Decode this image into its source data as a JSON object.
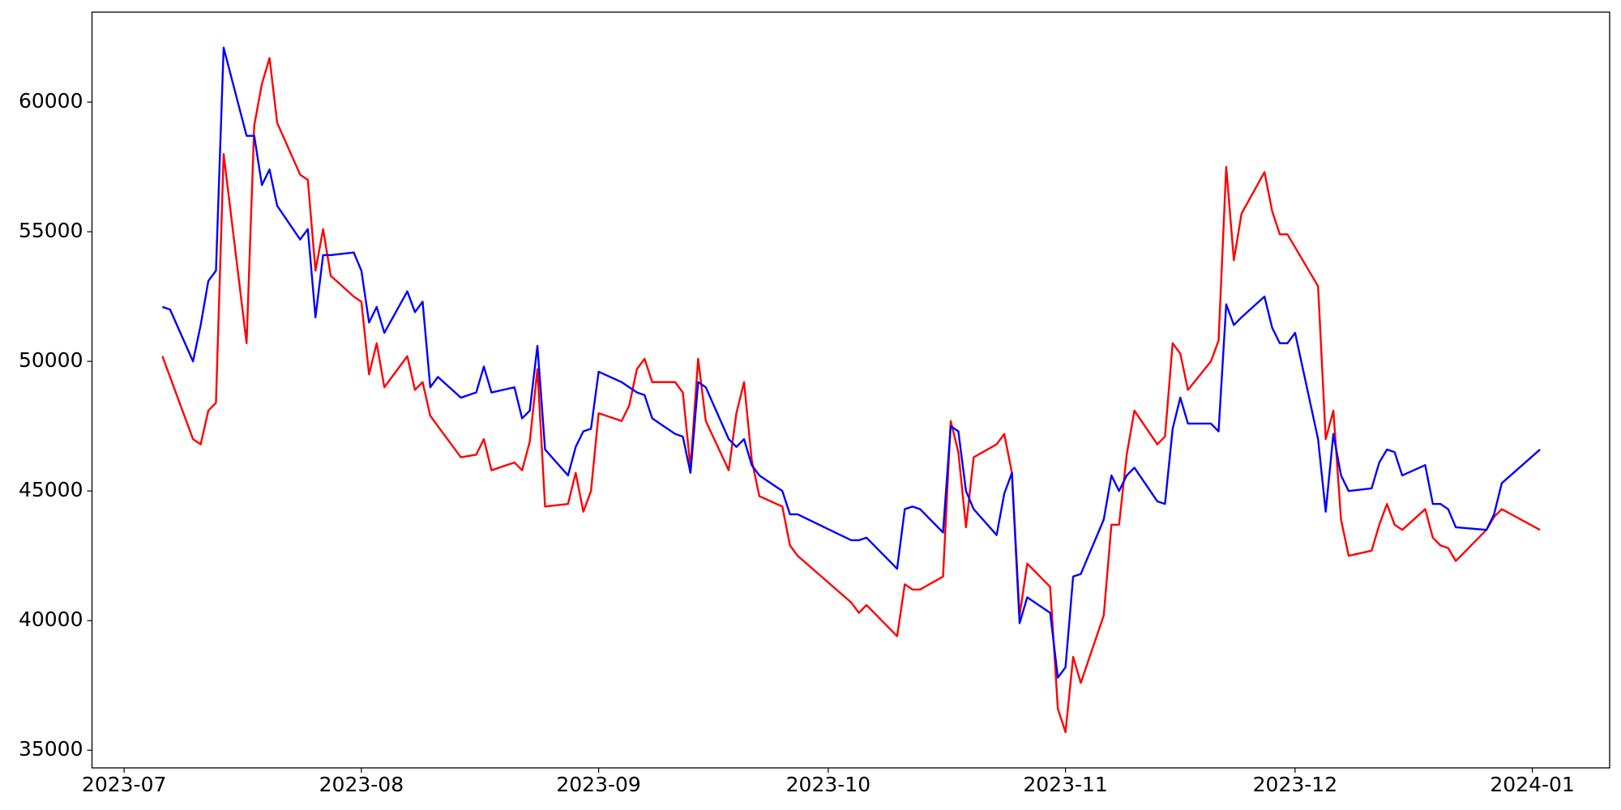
{
  "chart_data": {
    "type": "line",
    "x": [
      19544,
      19545,
      19548,
      19549,
      19550,
      19551,
      19552,
      19555,
      19556,
      19557,
      19558,
      19559,
      19562,
      19563,
      19564,
      19565,
      19566,
      19569,
      19570,
      19571,
      19572,
      19573,
      19576,
      19577,
      19578,
      19579,
      19580,
      19583,
      19585,
      19586,
      19587,
      19590,
      19591,
      19592,
      19593,
      19594,
      19597,
      19598,
      19599,
      19600,
      19601,
      19604,
      19605,
      19606,
      19607,
      19608,
      19611,
      19612,
      19613,
      19614,
      19615,
      19618,
      19619,
      19620,
      19621,
      19622,
      19625,
      19626,
      19627,
      19634,
      19635,
      19636,
      19640,
      19641,
      19642,
      19643,
      19646,
      19647,
      19648,
      19649,
      19650,
      19653,
      19654,
      19655,
      19656,
      19657,
      19660,
      19661,
      19662,
      19663,
      19664,
      19667,
      19668,
      19669,
      19670,
      19671,
      19674,
      19675,
      19676,
      19677,
      19678,
      19681,
      19682,
      19683,
      19684,
      19685,
      19688,
      19689,
      19690,
      19691,
      19692,
      19695,
      19696,
      19697,
      19698,
      19699,
      19702,
      19703,
      19704,
      19705,
      19706,
      19709,
      19710,
      19711,
      19712,
      19713,
      19717,
      19718,
      19719,
      19724
    ],
    "series": [
      {
        "color": "#ff0000",
        "values": [
          50200,
          49400,
          47000,
          46800,
          48100,
          48400,
          58000,
          50700,
          59100,
          60700,
          61700,
          59200,
          57200,
          57000,
          53500,
          55100,
          53300,
          52500,
          52300,
          49500,
          50700,
          49000,
          50200,
          48900,
          49200,
          47900,
          47500,
          46300,
          46400,
          47000,
          45800,
          46100,
          45800,
          46900,
          49700,
          44400,
          44500,
          45700,
          44200,
          45000,
          48000,
          47700,
          48300,
          49700,
          50100,
          49200,
          49200,
          48800,
          45900,
          50100,
          47700,
          45800,
          48000,
          49200,
          46200,
          44800,
          44400,
          42900,
          42500,
          40700,
          40300,
          40600,
          39400,
          41400,
          41200,
          41200,
          41700,
          47700,
          46500,
          43600,
          46300,
          46800,
          47200,
          45700,
          40200,
          42200,
          41300,
          36600,
          35700,
          38600,
          37600,
          40200,
          43700,
          43700,
          46400,
          48100,
          46800,
          47100,
          50700,
          50300,
          48900,
          50000,
          50800,
          57500,
          53900,
          55700,
          57300,
          55800,
          54900,
          54900,
          54400,
          52900,
          47000,
          48100,
          43900,
          42500,
          42700,
          43700,
          44500,
          43700,
          43500,
          44300,
          43200,
          42900,
          42800,
          42300,
          43500,
          44000,
          44300,
          43500
        ]
      },
      {
        "color": "#0000ff",
        "values": [
          52100,
          52000,
          50000,
          51400,
          53100,
          53500,
          62100,
          58700,
          58700,
          56800,
          57400,
          56000,
          54700,
          55100,
          51700,
          54100,
          54100,
          54200,
          53500,
          51500,
          52100,
          51100,
          52700,
          51900,
          52300,
          49000,
          49400,
          48600,
          48800,
          49800,
          48800,
          49000,
          47800,
          48100,
          50600,
          46600,
          45600,
          46700,
          47300,
          47400,
          49600,
          49200,
          49000,
          48800,
          48700,
          47800,
          47200,
          47100,
          45700,
          49200,
          49000,
          47000,
          46700,
          47000,
          46000,
          45600,
          45000,
          44100,
          44100,
          43100,
          43100,
          43200,
          42000,
          44300,
          44400,
          44300,
          43400,
          47500,
          47300,
          45000,
          44300,
          43300,
          44900,
          45700,
          39900,
          40900,
          40300,
          37800,
          38200,
          41700,
          41800,
          43900,
          45600,
          45000,
          45600,
          45900,
          44600,
          44500,
          47400,
          48600,
          47600,
          47600,
          47300,
          52200,
          51400,
          51700,
          52500,
          51300,
          50700,
          50700,
          51100,
          47000,
          44200,
          47200,
          45600,
          45000,
          45100,
          46100,
          46600,
          46500,
          45600,
          46000,
          44500,
          44500,
          44300,
          43600,
          43500,
          44100,
          45300,
          46600
        ]
      }
    ],
    "xlim": [
      19534.8,
      19733.1
    ],
    "xticks": [
      {
        "value": 19539,
        "label": "2023-07"
      },
      {
        "value": 19570,
        "label": "2023-08"
      },
      {
        "value": 19601,
        "label": "2023-09"
      },
      {
        "value": 19631,
        "label": "2023-10"
      },
      {
        "value": 19662,
        "label": "2023-11"
      },
      {
        "value": 19692,
        "label": "2023-12"
      },
      {
        "value": 19723,
        "label": "2024-01"
      }
    ],
    "ylim": [
      34320,
      63470
    ],
    "yticks": [
      35000,
      40000,
      45000,
      50000,
      55000,
      60000
    ]
  }
}
